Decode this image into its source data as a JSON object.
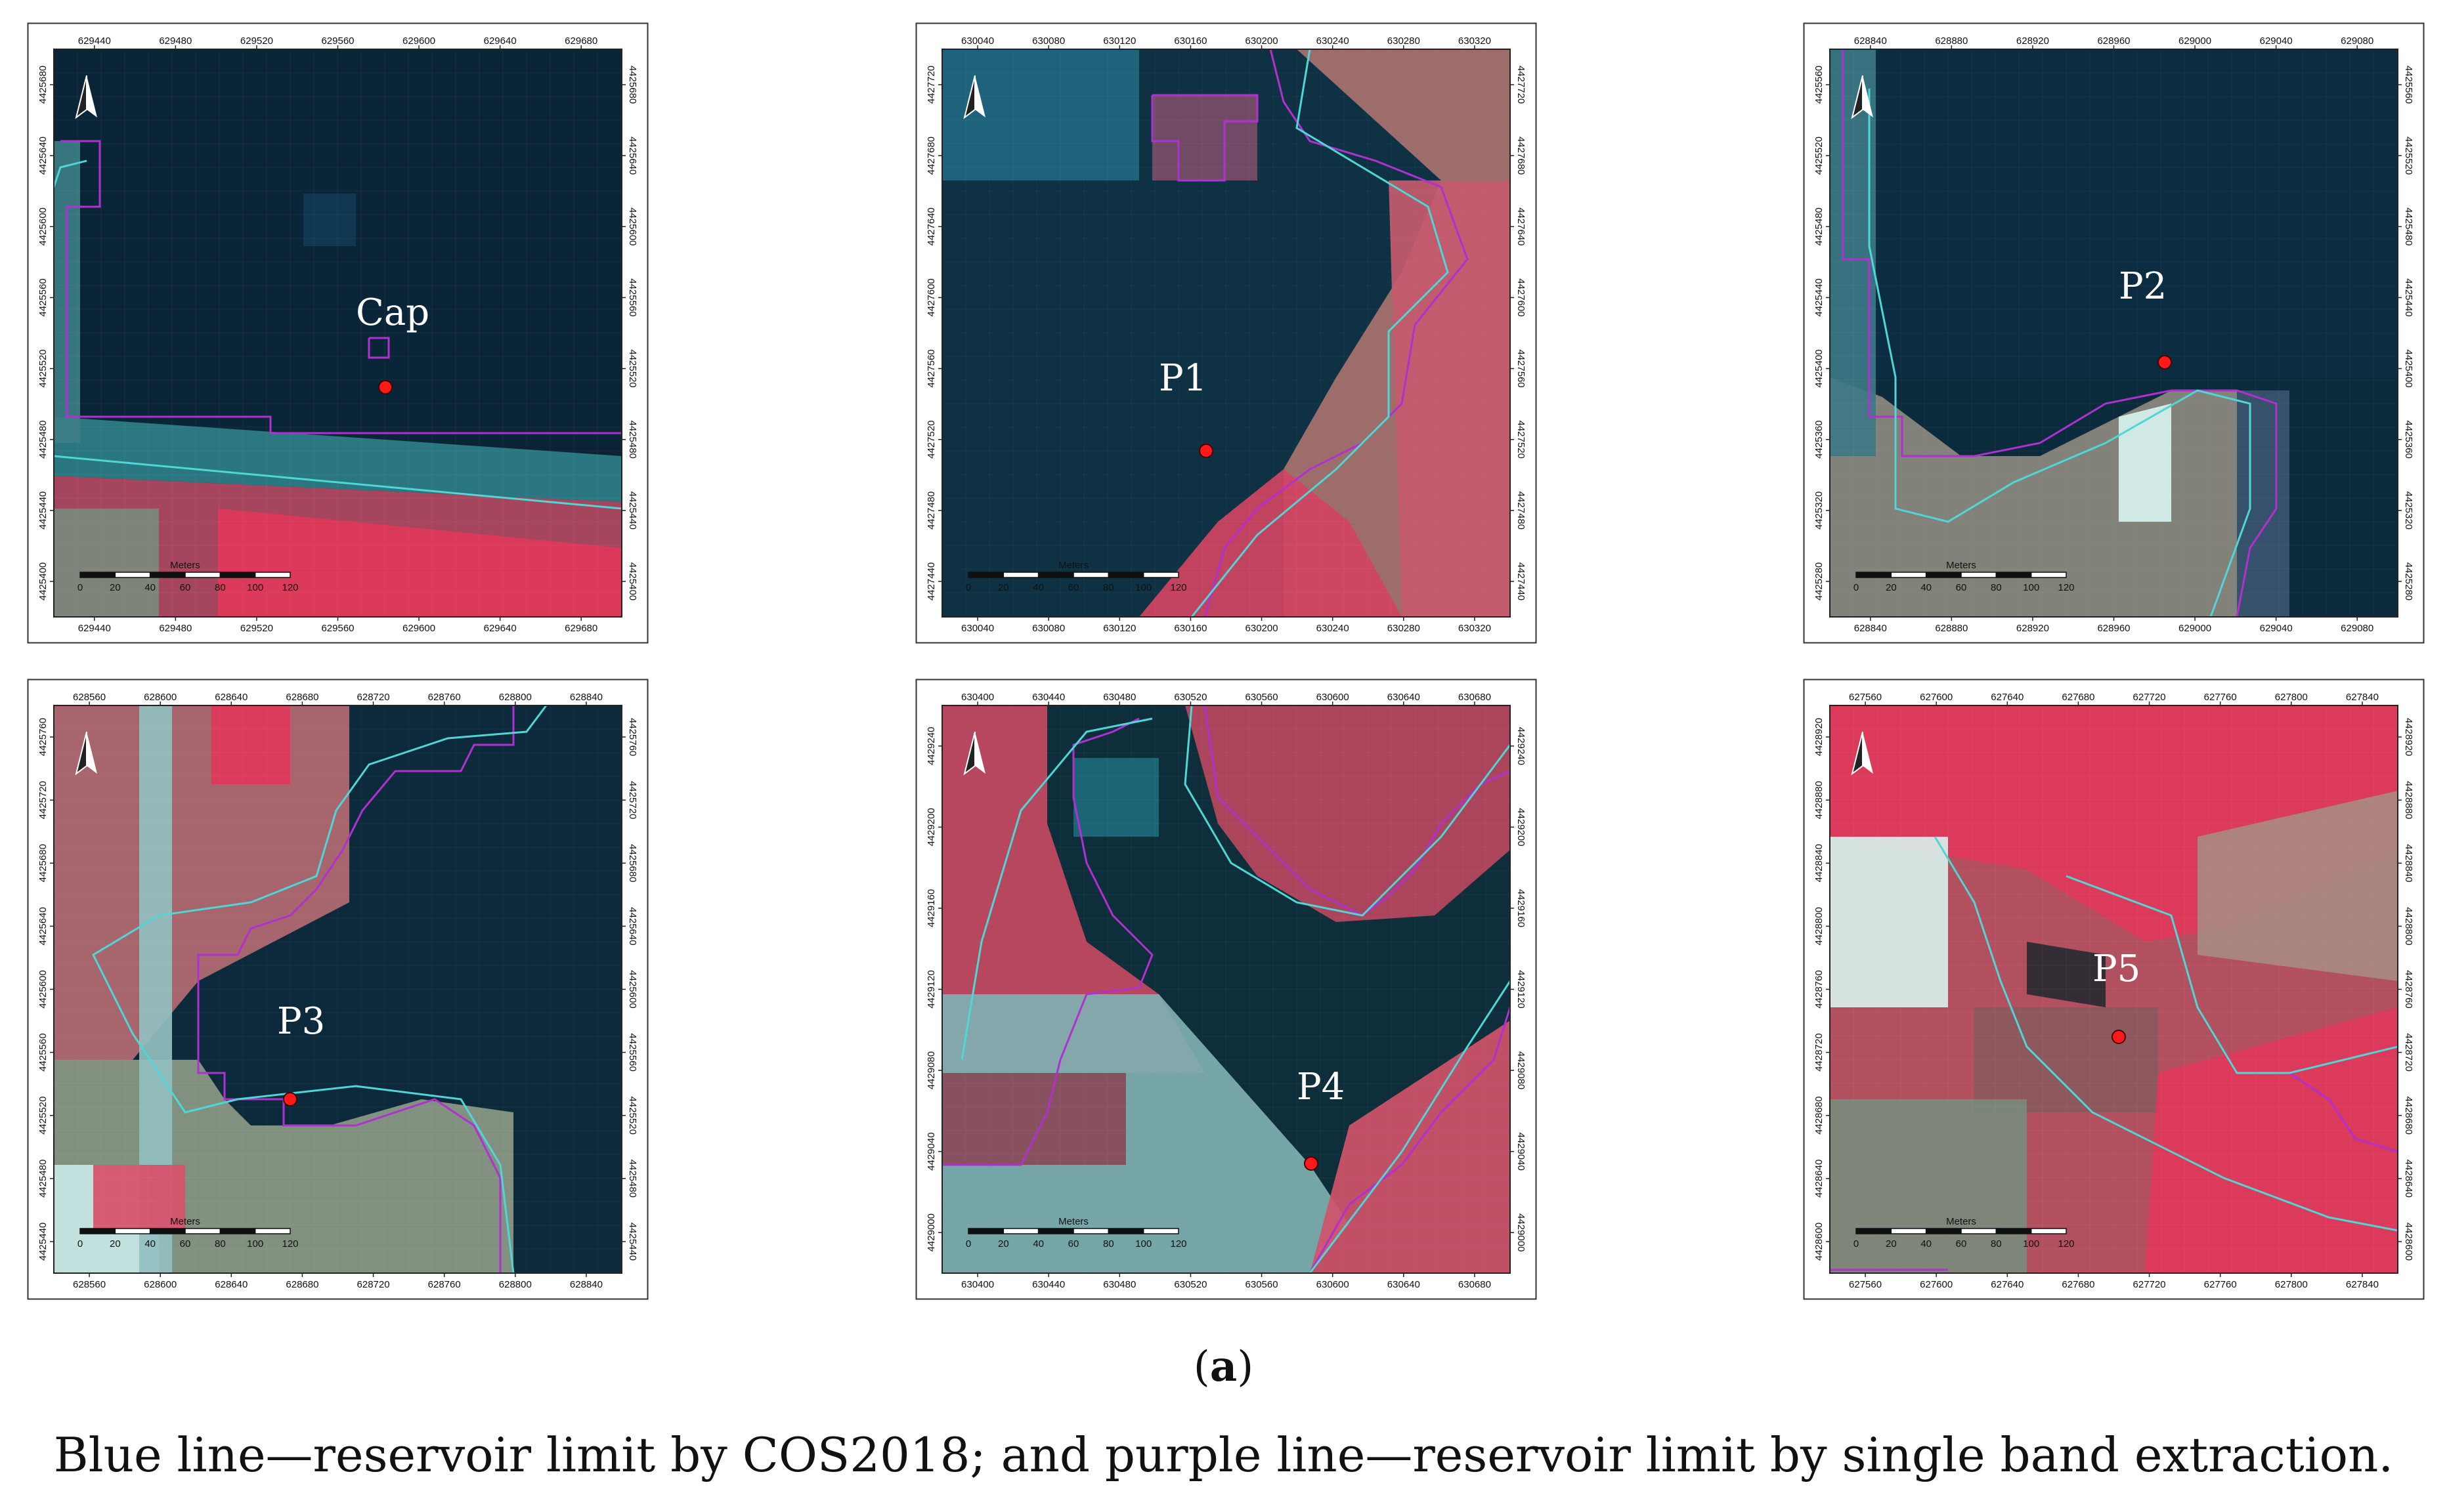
{
  "figure": {
    "panel_label": "a",
    "caption": "Blue line—reservoir limit by COS2018; and purple line—reservoir limit by single band extraction."
  },
  "colors": {
    "water": "#0d2a3a",
    "vegetation_red": "#e0385a",
    "cos2018_line": "#4fd6d6",
    "extraction_line": "#b030d0",
    "point_marker": "#ff1a1a"
  },
  "scale_bar": {
    "title": "Meters",
    "ticks": [
      "0",
      "20",
      "40",
      "60",
      "80",
      "100",
      "120"
    ]
  },
  "north_arrow": {
    "icon": "north-arrow-icon"
  },
  "panels": [
    {
      "id": "cap",
      "point_label": "Cap",
      "x_ticks": [
        "629440",
        "629480",
        "629520",
        "629560",
        "629600",
        "629640",
        "629680"
      ],
      "y_ticks": [
        "4425680",
        "4425640",
        "4425600",
        "4425560",
        "4425520",
        "4425480",
        "4425440",
        "4425400"
      ]
    },
    {
      "id": "p1",
      "point_label": "P1",
      "x_ticks": [
        "630040",
        "630080",
        "630120",
        "630160",
        "630200",
        "630240",
        "630280",
        "630320"
      ],
      "y_ticks": [
        "4427720",
        "4427680",
        "4427640",
        "4427600",
        "4427560",
        "4427520",
        "4427480",
        "4427440"
      ]
    },
    {
      "id": "p2",
      "point_label": "P2",
      "x_ticks": [
        "628840",
        "628880",
        "628920",
        "628960",
        "629000",
        "629040",
        "629080"
      ],
      "y_ticks": [
        "4425560",
        "4425520",
        "4425480",
        "4425440",
        "4425400",
        "4425360",
        "4425320",
        "4425280"
      ]
    },
    {
      "id": "p3",
      "point_label": "P3",
      "x_ticks": [
        "628560",
        "628600",
        "628640",
        "628680",
        "628720",
        "628760",
        "628800",
        "628840"
      ],
      "y_ticks": [
        "4425760",
        "4425720",
        "4425680",
        "4425640",
        "4425600",
        "4425560",
        "4425520",
        "4425480",
        "4425440"
      ]
    },
    {
      "id": "p4",
      "point_label": "P4",
      "x_ticks": [
        "630400",
        "630440",
        "630480",
        "630520",
        "630560",
        "630600",
        "630640",
        "630680"
      ],
      "y_ticks": [
        "4429240",
        "4429200",
        "4429160",
        "4429120",
        "4429080",
        "4429040",
        "4429000"
      ]
    },
    {
      "id": "p5",
      "point_label": "P5",
      "x_ticks": [
        "627560",
        "627600",
        "627640",
        "627680",
        "627720",
        "627760",
        "627800",
        "627840"
      ],
      "y_ticks": [
        "4428920",
        "4428880",
        "4428840",
        "4428800",
        "4428760",
        "4428720",
        "4428680",
        "4428640",
        "4428600"
      ]
    }
  ]
}
